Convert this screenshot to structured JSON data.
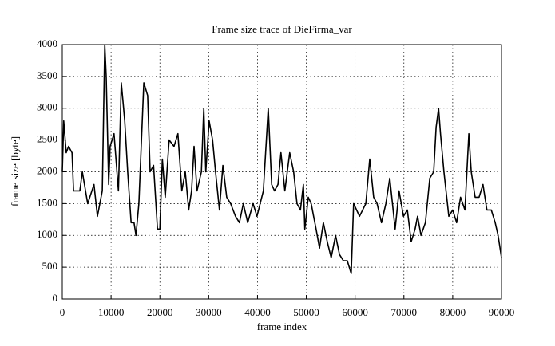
{
  "chart_data": {
    "type": "line",
    "title": "Frame size trace of DieFirma_var",
    "xlabel": "frame index",
    "ylabel": "frame size [byte]",
    "x": [
      0,
      300,
      800,
      1300,
      2000,
      2300,
      3600,
      4100,
      5200,
      6500,
      7200,
      8200,
      8700,
      9000,
      9500,
      9800,
      10600,
      11500,
      12100,
      12800,
      13400,
      14100,
      14700,
      15100,
      15700,
      16700,
      17500,
      18000,
      18700,
      19500,
      20000,
      20500,
      21100,
      21900,
      22900,
      23700,
      24500,
      25200,
      25900,
      26500,
      27000,
      27600,
      28500,
      29000,
      29400,
      30100,
      30800,
      31400,
      32200,
      32900,
      33700,
      34500,
      35500,
      36300,
      37100,
      38000,
      39100,
      39900,
      41200,
      42200,
      42900,
      43500,
      44200,
      44800,
      45600,
      46600,
      47400,
      48100,
      48800,
      49400,
      49700,
      50400,
      51000,
      51500,
      52000,
      52700,
      53500,
      54300,
      55100,
      56000,
      56800,
      57600,
      58400,
      59200,
      59700,
      60900,
      62200,
      63000,
      63800,
      64500,
      65400,
      66300,
      67100,
      68200,
      69000,
      69900,
      70700,
      71500,
      72300,
      72800,
      73500,
      74400,
      75300,
      76100,
      76600,
      77100,
      77500,
      78200,
      79200,
      80000,
      80800,
      81600,
      82500,
      83300,
      83800,
      84600,
      85400,
      86200,
      87000,
      87900,
      88700,
      89300,
      90000
    ],
    "series": [
      {
        "name": "frame size",
        "color": "#000000",
        "values": [
          2000,
          2800,
          2300,
          2400,
          2300,
          1700,
          1700,
          2000,
          1500,
          1800,
          1300,
          1700,
          4000,
          3500,
          1800,
          2400,
          2600,
          1700,
          3400,
          2800,
          2000,
          1200,
          1200,
          1000,
          1500,
          3400,
          3200,
          2000,
          2100,
          1100,
          1100,
          2200,
          1600,
          2500,
          2400,
          2600,
          1700,
          2000,
          1400,
          1700,
          2400,
          1700,
          2000,
          3000,
          2000,
          2800,
          2500,
          2000,
          1400,
          2100,
          1600,
          1500,
          1300,
          1200,
          1500,
          1200,
          1500,
          1300,
          1700,
          3000,
          1800,
          1700,
          1800,
          2300,
          1700,
          2300,
          2000,
          1500,
          1400,
          1800,
          1100,
          1600,
          1500,
          1300,
          1100,
          800,
          1200,
          900,
          650,
          1000,
          700,
          600,
          600,
          400,
          1500,
          1300,
          1500,
          2200,
          1600,
          1500,
          1200,
          1500,
          1900,
          1100,
          1700,
          1300,
          1400,
          900,
          1100,
          1300,
          1000,
          1200,
          1900,
          2000,
          2700,
          3000,
          2600,
          2000,
          1300,
          1400,
          1200,
          1600,
          1400,
          2600,
          2000,
          1600,
          1600,
          1800,
          1400,
          1400,
          1200,
          1000,
          650
        ]
      }
    ],
    "xlim": [
      0,
      90000
    ],
    "ylim": [
      0,
      4000
    ],
    "xticks": [
      0,
      10000,
      20000,
      30000,
      40000,
      50000,
      60000,
      70000,
      80000,
      90000
    ],
    "yticks": [
      0,
      500,
      1000,
      1500,
      2000,
      2500,
      3000,
      3500,
      4000
    ],
    "grid": true
  }
}
